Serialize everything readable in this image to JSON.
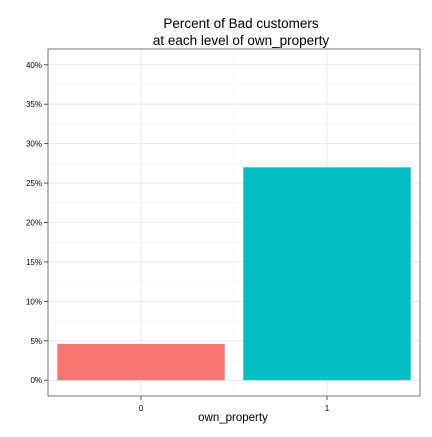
{
  "chart_data": {
    "type": "bar",
    "title_lines": [
      "Percent of Bad customers",
      "at each level of own_property"
    ],
    "xlabel": "own_property",
    "ylabel": "",
    "categories": [
      "0",
      "1"
    ],
    "values": [
      0.046,
      0.27
    ],
    "ylim": [
      -0.02,
      0.42
    ],
    "yticks": [
      0,
      0.05,
      0.1,
      0.15,
      0.2,
      0.25,
      0.3,
      0.35,
      0.4
    ],
    "ytick_labels": [
      "0%",
      "5%",
      "10%",
      "15%",
      "20%",
      "25%",
      "30%",
      "35%",
      "40%"
    ],
    "bar_colors": [
      "#F8766D",
      "#00BFC4"
    ],
    "grid": true,
    "legend": "none"
  }
}
